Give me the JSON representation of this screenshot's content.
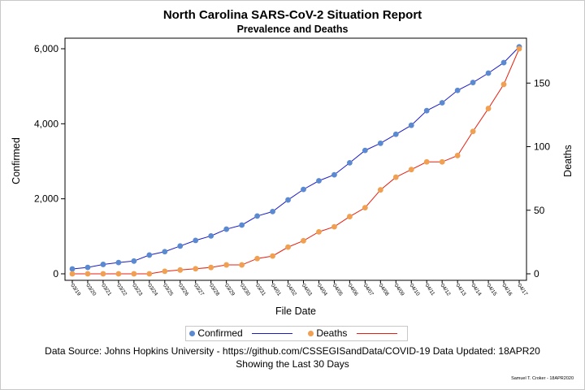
{
  "colors": {
    "confirmed_marker": "#5b8ad0",
    "confirmed_line": "#1b1bc8",
    "deaths_marker": "#f0a050",
    "deaths_line": "#e81e10"
  },
  "footer": {
    "source": "Data Source: Johns Hopkins University - https://github.com/CSSEGISandData/COVID-19 Data Updated: 18APR20",
    "showing": "Showing the Last 30 Days",
    "credit": "Samuel T. Croker - 18APR2020"
  },
  "chart_data": {
    "type": "line",
    "title": "North Carolina SARS-CoV-2 Situation Report",
    "subtitle": "Prevalence and Deaths",
    "xlabel": "File Date",
    "ylabel": "Confirmed",
    "y2label": "Deaths",
    "ylim": [
      0,
      6000
    ],
    "y2lim": [
      0,
      177
    ],
    "yticks": [
      0,
      2000,
      4000,
      6000
    ],
    "ytick_labels": [
      "0",
      "2,000",
      "4,000",
      "6,000"
    ],
    "y2ticks": [
      0,
      50,
      100,
      150
    ],
    "y2tick_labels": [
      "0",
      "50",
      "100",
      "150"
    ],
    "grid": false,
    "legend_position": "bottom",
    "categories": [
      "03/19",
      "03/20",
      "03/21",
      "03/22",
      "03/23",
      "03/24",
      "03/25",
      "03/26",
      "03/27",
      "03/28",
      "03/29",
      "03/30",
      "03/31",
      "04/01",
      "04/02",
      "04/03",
      "04/04",
      "04/05",
      "04/06",
      "04/07",
      "04/08",
      "04/09",
      "04/10",
      "04/11",
      "04/12",
      "04/13",
      "04/14",
      "04/15",
      "04/16",
      "04/17"
    ],
    "series": [
      {
        "name": "Confirmed",
        "axis": "left",
        "values": [
          130,
          170,
          250,
          300,
          340,
          500,
          590,
          740,
          890,
          1010,
          1190,
          1300,
          1540,
          1660,
          1970,
          2250,
          2480,
          2640,
          2960,
          3290,
          3480,
          3720,
          3960,
          4350,
          4560,
          4890,
          5100,
          5350,
          5630,
          6050
        ]
      },
      {
        "name": "Deaths",
        "axis": "right",
        "values": [
          0,
          0,
          0,
          0,
          0,
          0,
          2,
          3,
          4,
          5,
          7,
          7,
          12,
          14,
          21,
          26,
          33,
          37,
          45,
          52,
          66,
          76,
          82,
          88,
          88,
          93,
          112,
          130,
          149,
          177
        ]
      }
    ]
  }
}
